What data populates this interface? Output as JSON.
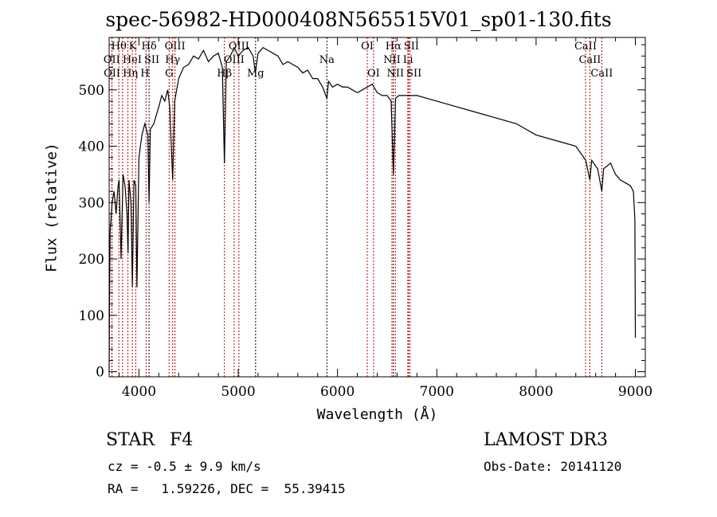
{
  "chart_data": {
    "type": "line",
    "title": "spec-56982-HD000408N565515V01_sp01-130.fits",
    "xlabel": "Wavelength (Å)",
    "ylabel": "Flux (relative)",
    "xlim": [
      3700,
      9100
    ],
    "ylim": [
      -9,
      593
    ],
    "xticks": [
      4000,
      5000,
      6000,
      7000,
      8000,
      9000
    ],
    "yticks": [
      0,
      100,
      200,
      300,
      400,
      500
    ],
    "grid": false,
    "series": [
      {
        "name": "spectrum",
        "x": [
          3700,
          3705,
          3710,
          3730,
          3750,
          3770,
          3790,
          3800,
          3820,
          3840,
          3860,
          3880,
          3890,
          3900,
          3920,
          3934,
          3950,
          3968,
          3980,
          4000,
          4030,
          4060,
          4090,
          4102,
          4115,
          4150,
          4200,
          4230,
          4260,
          4290,
          4310,
          4340,
          4360,
          4400,
          4450,
          4500,
          4550,
          4600,
          4650,
          4700,
          4750,
          4800,
          4840,
          4861,
          4880,
          4920,
          4960,
          5000,
          5050,
          5100,
          5150,
          5172,
          5200,
          5250,
          5300,
          5350,
          5400,
          5450,
          5500,
          5550,
          5600,
          5650,
          5700,
          5750,
          5800,
          5850,
          5893,
          5910,
          5950,
          6000,
          6050,
          6100,
          6150,
          6200,
          6250,
          6300,
          6350,
          6400,
          6450,
          6500,
          6540,
          6563,
          6585,
          6620,
          6700,
          6800,
          6900,
          7000,
          7200,
          7400,
          7600,
          7800,
          8000,
          8200,
          8400,
          8500,
          8542,
          8560,
          8620,
          8662,
          8680,
          8750,
          8800,
          8850,
          8900,
          8950,
          8980,
          8995,
          9000
        ],
        "y": [
          0,
          150,
          250,
          300,
          320,
          280,
          330,
          340,
          200,
          350,
          330,
          280,
          210,
          340,
          300,
          150,
          340,
          330,
          150,
          380,
          420,
          440,
          420,
          300,
          430,
          440,
          470,
          490,
          480,
          500,
          470,
          340,
          480,
          520,
          540,
          545,
          560,
          555,
          570,
          550,
          560,
          565,
          540,
          370,
          550,
          560,
          575,
          560,
          570,
          575,
          560,
          530,
          565,
          575,
          570,
          565,
          560,
          545,
          550,
          545,
          540,
          530,
          535,
          520,
          520,
          505,
          485,
          515,
          505,
          510,
          505,
          505,
          500,
          495,
          500,
          505,
          510,
          495,
          490,
          490,
          480,
          350,
          485,
          490,
          490,
          490,
          485,
          480,
          470,
          460,
          450,
          440,
          420,
          410,
          400,
          375,
          340,
          375,
          360,
          320,
          360,
          370,
          350,
          340,
          335,
          330,
          320,
          270,
          60
        ]
      }
    ],
    "lines": [
      {
        "label": "Hθ",
        "wl": 3798,
        "row": 1,
        "color": "#c00000"
      },
      {
        "label": "K",
        "wl": 3934,
        "row": 1,
        "color": "#c00000"
      },
      {
        "label": "Hδ",
        "wl": 4102,
        "row": 1,
        "color": "#000000"
      },
      {
        "label": "OIII",
        "wl": 4363,
        "row": 1,
        "color": "#c00000"
      },
      {
        "label": "OIII",
        "wl": 5007,
        "row": 1,
        "color": "#c00000"
      },
      {
        "label": "OI",
        "wl": 6300,
        "row": 1,
        "color": "#c00000"
      },
      {
        "label": "Hα",
        "wl": 6563,
        "row": 1,
        "color": "#000000"
      },
      {
        "label": "SII",
        "wl": 6717,
        "row": 1,
        "color": "#c00000"
      },
      {
        "label": "CaII",
        "wl": 8498,
        "row": 1,
        "color": "#c00000"
      },
      {
        "label": "OII",
        "wl": 3727,
        "row": 2,
        "color": "#c00000"
      },
      {
        "label": "HeI",
        "wl": 3889,
        "row": 2,
        "color": "#c00000"
      },
      {
        "label": "SII",
        "wl": 4072,
        "row": 2,
        "color": "#c00000"
      },
      {
        "label": "Hγ",
        "wl": 4340,
        "row": 2,
        "color": "#c00000"
      },
      {
        "label": "OIII",
        "wl": 4959,
        "row": 2,
        "color": "#c00000"
      },
      {
        "label": "Na",
        "wl": 5893,
        "row": 2,
        "color": "#000000"
      },
      {
        "label": "NII",
        "wl": 6548,
        "row": 2,
        "color": "#c00000"
      },
      {
        "label": "Li",
        "wl": 6708,
        "row": 2,
        "color": "#c00000"
      },
      {
        "label": "CaII",
        "wl": 8542,
        "row": 2,
        "color": "#c00000"
      },
      {
        "label": "OII",
        "wl": 3729,
        "row": 3,
        "color": "#c00000"
      },
      {
        "label": "Hη",
        "wl": 3835,
        "row": 3,
        "color": "#c00000"
      },
      {
        "label": "H",
        "wl": 3968,
        "row": 3,
        "color": "#c00000"
      },
      {
        "label": "G",
        "wl": 4304,
        "row": 3,
        "color": "#c00000"
      },
      {
        "label": "Hβ",
        "wl": 4861,
        "row": 3,
        "color": "#c00000"
      },
      {
        "label": "Mg",
        "wl": 5175,
        "row": 3,
        "color": "#000000"
      },
      {
        "label": "OI",
        "wl": 6363,
        "row": 3,
        "color": "#c00000"
      },
      {
        "label": "NII",
        "wl": 6583,
        "row": 3,
        "color": "#c00000"
      },
      {
        "label": "SII",
        "wl": 6731,
        "row": 3,
        "color": "#c00000"
      },
      {
        "label": "CaII",
        "wl": 8662,
        "row": 3,
        "color": "#c00000"
      }
    ]
  },
  "footer": {
    "class_label": "STAR",
    "subclass": "F4",
    "cz": "cz = -0.5 ± 9.9 km/s",
    "radec": "RA =   1.59226, DEC =  55.39415",
    "survey": "LAMOST DR3",
    "obsdate": "Obs-Date: 20141120"
  }
}
